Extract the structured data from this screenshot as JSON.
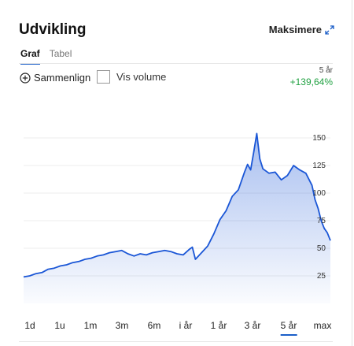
{
  "header": {
    "title": "Udvikling",
    "maximize_label": "Maksimere"
  },
  "tabs": [
    {
      "label": "Graf",
      "active": true
    },
    {
      "label": "Tabel",
      "active": false
    }
  ],
  "controls": {
    "compare_label": "Sammenlign",
    "volume_label": "Vis volume",
    "volume_checked": false
  },
  "summary": {
    "period": "5 år",
    "change": "+139,64%",
    "change_color": "#21a142"
  },
  "ranges": [
    {
      "label": "1d",
      "active": false
    },
    {
      "label": "1u",
      "active": false
    },
    {
      "label": "1m",
      "active": false
    },
    {
      "label": "3m",
      "active": false
    },
    {
      "label": "6m",
      "active": false
    },
    {
      "label": "i år",
      "active": false
    },
    {
      "label": "1 år",
      "active": false
    },
    {
      "label": "3 år",
      "active": false
    },
    {
      "label": "5 år",
      "active": true
    },
    {
      "label": "max",
      "active": false
    }
  ],
  "chart_data": {
    "type": "area",
    "x_range": "5 år",
    "ylim": [
      0,
      175
    ],
    "yticks": [
      25,
      50,
      75,
      100,
      125,
      150
    ],
    "grid": true,
    "line_color": "#1a56d6",
    "x": [
      0,
      0.02,
      0.04,
      0.06,
      0.08,
      0.1,
      0.12,
      0.14,
      0.16,
      0.18,
      0.2,
      0.22,
      0.24,
      0.26,
      0.28,
      0.3,
      0.32,
      0.34,
      0.36,
      0.38,
      0.4,
      0.42,
      0.44,
      0.46,
      0.48,
      0.5,
      0.52,
      0.54,
      0.55,
      0.56,
      0.58,
      0.6,
      0.62,
      0.64,
      0.66,
      0.68,
      0.7,
      0.72,
      0.73,
      0.74,
      0.75,
      0.76,
      0.77,
      0.78,
      0.8,
      0.82,
      0.84,
      0.86,
      0.88,
      0.9,
      0.92,
      0.94,
      0.95,
      0.96,
      0.97,
      0.98,
      0.99,
      1.0
    ],
    "values": [
      24,
      25,
      27,
      28,
      31,
      32,
      34,
      35,
      37,
      38,
      40,
      41,
      43,
      44,
      46,
      47,
      48,
      45,
      43,
      45,
      44,
      46,
      47,
      48,
      47,
      45,
      44,
      49,
      51,
      40,
      46,
      52,
      63,
      76,
      84,
      97,
      103,
      119,
      126,
      121,
      137,
      154,
      131,
      122,
      118,
      119,
      112,
      116,
      125,
      121,
      118,
      107,
      94,
      86,
      75,
      68,
      64,
      57
    ]
  }
}
